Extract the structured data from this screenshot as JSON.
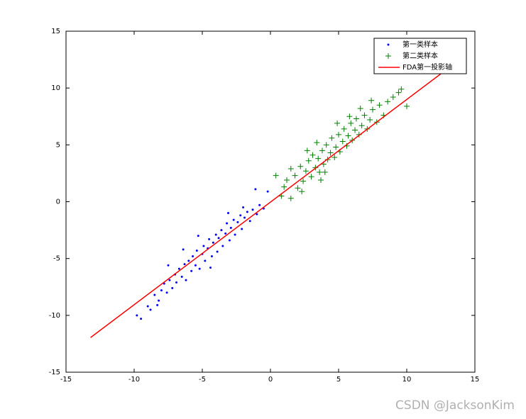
{
  "chart_data": {
    "type": "scatter",
    "xlim": [
      -15,
      15
    ],
    "ylim": [
      -15,
      15
    ],
    "xticks": [
      -15,
      -10,
      -5,
      0,
      5,
      10,
      15
    ],
    "yticks": [
      -15,
      -10,
      -5,
      0,
      5,
      10,
      15
    ],
    "legend_position": "upper right",
    "watermark": "CSDN @JacksonKim",
    "series": [
      {
        "name": "第一类样本",
        "color": "#0000ff",
        "marker": "dot",
        "x": [
          -9.8,
          -9.5,
          -9.0,
          -8.8,
          -8.5,
          -8.2,
          -8.0,
          -7.8,
          -7.6,
          -7.4,
          -7.2,
          -7.0,
          -6.9,
          -6.7,
          -6.5,
          -6.3,
          -6.2,
          -6.0,
          -5.8,
          -5.7,
          -5.5,
          -5.4,
          -5.2,
          -5.0,
          -4.9,
          -4.8,
          -4.6,
          -4.5,
          -4.3,
          -4.2,
          -4.0,
          -3.9,
          -3.8,
          -3.6,
          -3.5,
          -3.3,
          -3.2,
          -3.0,
          -2.9,
          -2.7,
          -2.6,
          -2.4,
          -2.2,
          -2.1,
          -1.9,
          -1.7,
          -1.5,
          -1.3,
          -1.0,
          -0.8,
          -0.5,
          -0.2,
          -1.1,
          -5.3,
          -6.4,
          -7.5,
          -3.1,
          -4.4,
          -2.0,
          -8.3
        ],
        "y": [
          -10.0,
          -10.3,
          -9.2,
          -9.5,
          -8.2,
          -8.7,
          -7.8,
          -7.2,
          -8.0,
          -6.9,
          -7.6,
          -6.4,
          -7.1,
          -5.9,
          -6.6,
          -5.5,
          -6.9,
          -5.2,
          -6.1,
          -4.8,
          -5.6,
          -4.3,
          -5.9,
          -4.6,
          -3.9,
          -5.2,
          -4.1,
          -3.3,
          -4.8,
          -3.6,
          -2.9,
          -4.4,
          -3.2,
          -2.5,
          -3.9,
          -2.8,
          -1.9,
          -3.4,
          -2.3,
          -1.6,
          -2.9,
          -1.8,
          -1.2,
          -2.4,
          -1.4,
          -0.9,
          -1.7,
          -0.7,
          -1.1,
          -0.3,
          -0.6,
          0.9,
          1.1,
          -3.0,
          -4.2,
          -5.6,
          -1.0,
          -5.8,
          -0.5,
          -9.1
        ]
      },
      {
        "name": "第二类样本",
        "color": "#008000",
        "marker": "plus",
        "x": [
          0.8,
          1.2,
          1.5,
          1.8,
          2.0,
          2.2,
          2.4,
          2.6,
          2.8,
          3.0,
          3.1,
          3.3,
          3.5,
          3.6,
          3.8,
          3.9,
          4.1,
          4.2,
          4.4,
          4.5,
          4.7,
          4.8,
          5.0,
          5.1,
          5.3,
          5.4,
          5.6,
          5.7,
          5.9,
          6.0,
          6.2,
          6.3,
          6.5,
          6.7,
          6.9,
          7.1,
          7.3,
          7.5,
          7.8,
          8.0,
          8.3,
          8.6,
          9.0,
          9.4,
          9.6,
          10.0,
          2.7,
          1.5,
          3.4,
          4.9,
          5.8,
          2.3,
          4.0,
          6.6,
          1.0,
          3.7,
          7.4,
          0.4
        ],
        "y": [
          0.5,
          1.9,
          0.3,
          2.3,
          1.2,
          3.1,
          1.8,
          2.7,
          3.6,
          2.2,
          4.1,
          3.0,
          3.8,
          2.6,
          4.5,
          3.3,
          5.0,
          3.7,
          4.3,
          5.6,
          3.9,
          4.8,
          5.9,
          4.4,
          5.3,
          6.4,
          4.9,
          5.8,
          6.9,
          5.4,
          6.3,
          7.3,
          5.9,
          6.7,
          7.6,
          6.4,
          7.2,
          8.1,
          7.0,
          8.5,
          7.6,
          8.8,
          9.2,
          9.6,
          9.9,
          8.4,
          4.5,
          2.9,
          5.2,
          6.9,
          7.5,
          0.9,
          2.6,
          8.2,
          1.3,
          1.9,
          8.9,
          2.3
        ]
      },
      {
        "name": "FDA第一投影轴",
        "color": "#ff0000",
        "marker": "line",
        "x": [
          -13.2,
          13.0
        ],
        "y": [
          -11.95,
          11.7
        ]
      }
    ]
  }
}
